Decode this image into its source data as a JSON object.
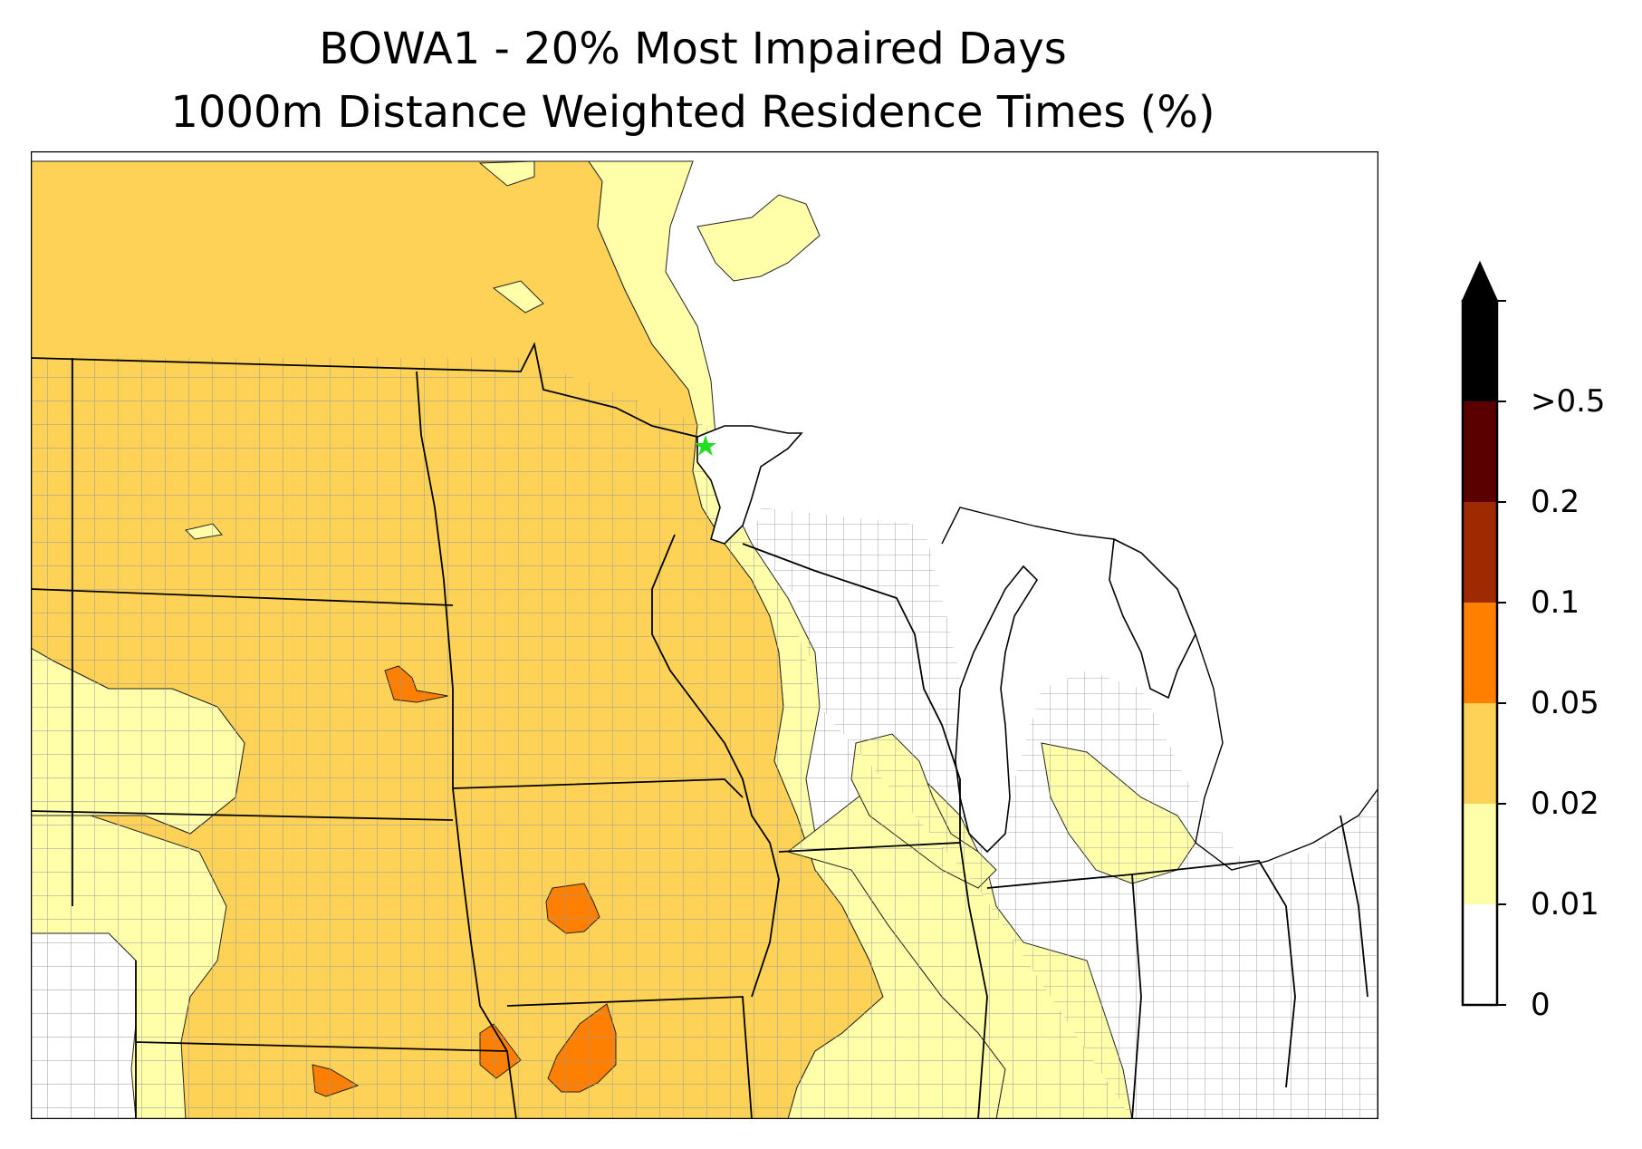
{
  "title": {
    "line1": "BOWA1 - 20% Most Impaired Days",
    "line2": "1000m Distance Weighted Residence Times (%)"
  },
  "site_marker": {
    "name": "BOWA1",
    "icon": "star-icon",
    "color": "#22dd22"
  },
  "colorbar": {
    "levels": [
      {
        "label": "0",
        "color": "#ffffff"
      },
      {
        "label": "0.01",
        "color": "#ffffff"
      },
      {
        "label": "0.02",
        "color": "#ffffaa"
      },
      {
        "label": "0.05",
        "color": "#fed256"
      },
      {
        "label": "0.1",
        "color": "#ff8000"
      },
      {
        "label": "0.2",
        "color": "#a02a00"
      },
      {
        "label": ">0.5",
        "color": "#5a0000"
      }
    ],
    "extend_color": "#000000",
    "tick_labels": [
      "0",
      "0.01",
      "0.02",
      "0.05",
      "0.1",
      "0.2",
      ">0.5"
    ]
  }
}
